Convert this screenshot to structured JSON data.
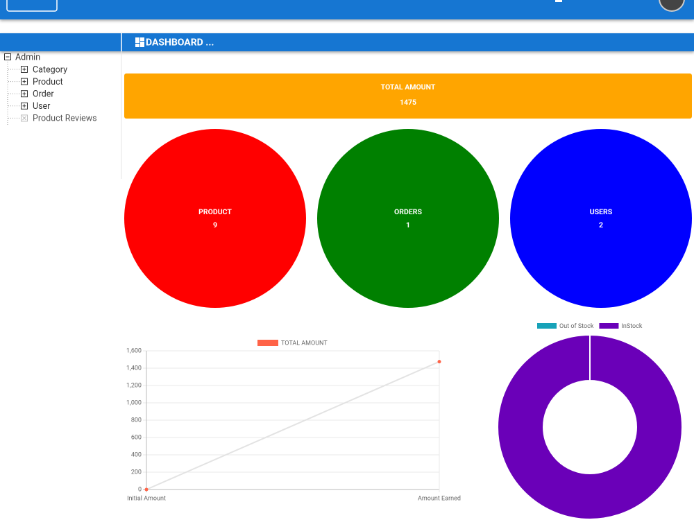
{
  "sidebar": {
    "root": "Admin",
    "items": [
      "Category",
      "Product",
      "Order",
      "User",
      "Product Reviews"
    ]
  },
  "header": {
    "title": "DASHBOARD ..."
  },
  "total_card": {
    "label": "TOTAL AMOUNT",
    "value": 1475
  },
  "stat_circles": [
    {
      "label": "PRODUCT",
      "value": 9,
      "color": "#ff0000"
    },
    {
      "label": "ORDERS",
      "value": 1,
      "color": "#008000"
    },
    {
      "label": "USERS",
      "value": 2,
      "color": "#0000ff"
    }
  ],
  "chart_data": [
    {
      "type": "line",
      "categories": [
        "Initial Amount",
        "Amount Earned"
      ],
      "series": [
        {
          "name": "TOTAL AMOUNT",
          "color": "#ff6347",
          "line_color": "#e3e3e3",
          "values": [
            0,
            1475
          ]
        }
      ],
      "ylim": [
        0,
        1600
      ],
      "yticks": [
        0,
        200,
        400,
        600,
        800,
        {
          "value": 1000,
          "label": "1,000"
        },
        {
          "value": 1200,
          "label": "1,200"
        },
        {
          "value": 1400,
          "label": "1,400"
        },
        {
          "value": 1600,
          "label": "1,600"
        }
      ],
      "grid": true,
      "legend": "top"
    },
    {
      "type": "doughnut",
      "categories": [
        "Out of Stock",
        "InStock"
      ],
      "values": [
        0,
        9
      ],
      "colors": [
        "#17a2b8",
        "#6a00b8"
      ],
      "legend": "top"
    }
  ]
}
